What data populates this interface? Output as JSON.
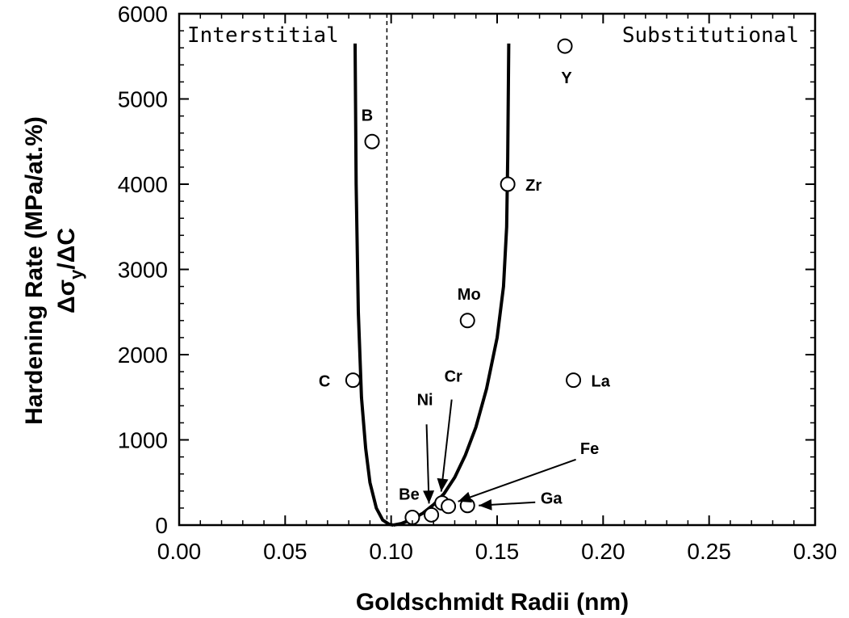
{
  "chart_data": {
    "type": "scatter",
    "xlabel": "Goldschmidt Radii (nm)",
    "ylabel_line1": "Hardening Rate (MPa/at.%)",
    "ylabel_line2": "Δσ",
    "ylabel_sub": "y",
    "ylabel_tail": "/ΔC",
    "xlim": [
      0.0,
      0.3
    ],
    "ylim": [
      0,
      6000
    ],
    "xticks": [
      "0.00",
      "0.05",
      "0.10",
      "0.15",
      "0.20",
      "0.25",
      "0.30"
    ],
    "yticks": [
      "0",
      "1000",
      "2000",
      "3000",
      "4000",
      "5000",
      "6000"
    ],
    "region_labels": {
      "left": "Interstitial",
      "right": "Substitutional"
    },
    "divider_x": 0.098,
    "points": [
      {
        "label": "C",
        "x": 0.082,
        "y": 1700
      },
      {
        "label": "B",
        "x": 0.091,
        "y": 4500
      },
      {
        "label": "Be",
        "x": 0.11,
        "y": 90
      },
      {
        "label": "Ni",
        "x": 0.119,
        "y": 120
      },
      {
        "label": "Cr",
        "x": 0.124,
        "y": 260
      },
      {
        "label": "Fe",
        "x": 0.127,
        "y": 220
      },
      {
        "label": "Ga",
        "x": 0.136,
        "y": 230
      },
      {
        "label": "Mo",
        "x": 0.136,
        "y": 2400
      },
      {
        "label": "Zr",
        "x": 0.155,
        "y": 4000
      },
      {
        "label": "Y",
        "x": 0.182,
        "y": 5620
      },
      {
        "label": "La",
        "x": 0.186,
        "y": 1700
      }
    ],
    "curve_left": [
      [
        0.083,
        5650
      ],
      [
        0.0835,
        4000
      ],
      [
        0.0845,
        2500
      ],
      [
        0.086,
        1500
      ],
      [
        0.088,
        900
      ],
      [
        0.09,
        500
      ],
      [
        0.093,
        200
      ],
      [
        0.096,
        60
      ],
      [
        0.099,
        10
      ],
      [
        0.101,
        0
      ]
    ],
    "curve_right": [
      [
        0.101,
        0
      ],
      [
        0.105,
        20
      ],
      [
        0.11,
        70
      ],
      [
        0.115,
        140
      ],
      [
        0.12,
        240
      ],
      [
        0.125,
        370
      ],
      [
        0.13,
        560
      ],
      [
        0.135,
        820
      ],
      [
        0.14,
        1150
      ],
      [
        0.145,
        1600
      ],
      [
        0.15,
        2200
      ],
      [
        0.153,
        2800
      ],
      [
        0.1545,
        3500
      ],
      [
        0.155,
        4300
      ],
      [
        0.1555,
        5650
      ]
    ]
  }
}
